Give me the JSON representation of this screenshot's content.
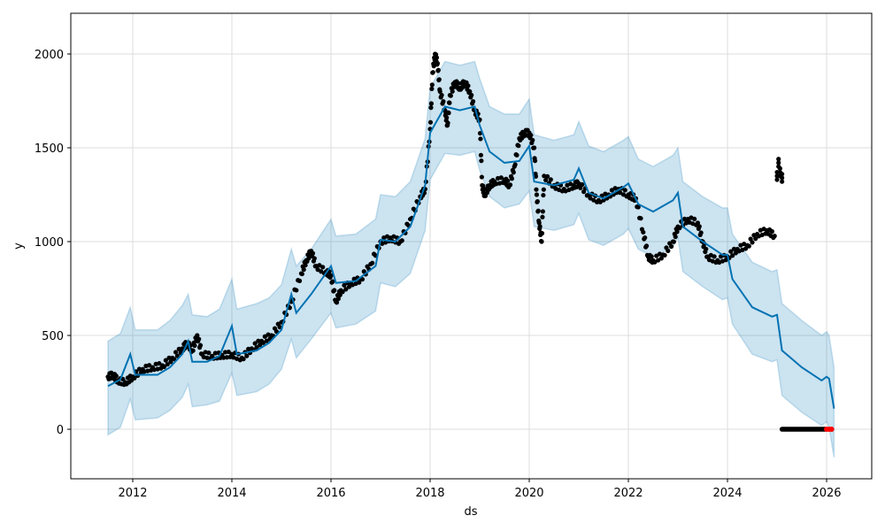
{
  "chart_data": {
    "type": "line",
    "title": "",
    "xlabel": "ds",
    "ylabel": "y",
    "xlim": [
      2010.75,
      2026.91
    ],
    "ylim": [
      -264,
      2217
    ],
    "grid": true,
    "xticks": [
      2012,
      2014,
      2016,
      2018,
      2020,
      2022,
      2024,
      2026
    ],
    "xtick_labels": [
      "2012",
      "2014",
      "2016",
      "2018",
      "2020",
      "2022",
      "2024",
      "2026"
    ],
    "yticks": [
      0,
      500,
      1000,
      1500,
      2000
    ],
    "ytick_labels": [
      "0",
      "500",
      "1000",
      "1500",
      "2000"
    ],
    "colors": {
      "forecast": "#0072B2",
      "band": "#0072B2",
      "observed": "#000000",
      "highlight": "#ff0000",
      "grid": "#dddddd"
    },
    "forecast": {
      "name": "yhat",
      "x": [
        2011.5,
        2011.75,
        2011.95,
        2012.05,
        2012.5,
        2012.75,
        2013.0,
        2013.12,
        2013.2,
        2013.5,
        2013.75,
        2014.0,
        2014.1,
        2014.5,
        2014.75,
        2015.0,
        2015.2,
        2015.3,
        2015.6,
        2016.0,
        2016.1,
        2016.5,
        2016.9,
        2017.0,
        2017.3,
        2017.6,
        2017.9,
        2018.0,
        2018.3,
        2018.6,
        2018.9,
        2019.0,
        2019.2,
        2019.5,
        2019.8,
        2020.0,
        2020.1,
        2020.5,
        2020.9,
        2021.0,
        2021.2,
        2021.5,
        2021.9,
        2022.0,
        2022.2,
        2022.5,
        2022.9,
        2023.0,
        2023.1,
        2023.5,
        2023.9,
        2024.0,
        2024.1,
        2024.5,
        2024.9,
        2025.0,
        2025.1,
        2025.5,
        2025.9,
        2026.0,
        2026.05,
        2026.15
      ],
      "yhat": [
        230,
        265,
        400,
        290,
        290,
        330,
        400,
        470,
        360,
        360,
        390,
        550,
        400,
        420,
        460,
        530,
        720,
        620,
        720,
        870,
        780,
        790,
        870,
        1010,
        1000,
        1080,
        1300,
        1580,
        1720,
        1700,
        1720,
        1620,
        1480,
        1420,
        1430,
        1510,
        1320,
        1300,
        1330,
        1390,
        1260,
        1230,
        1290,
        1310,
        1200,
        1160,
        1220,
        1260,
        1080,
        1000,
        930,
        930,
        800,
        650,
        600,
        610,
        420,
        330,
        260,
        280,
        270,
        110
      ],
      "lower": [
        -30,
        10,
        160,
        50,
        60,
        100,
        170,
        240,
        120,
        130,
        150,
        300,
        180,
        200,
        240,
        320,
        480,
        380,
        480,
        620,
        540,
        560,
        630,
        780,
        760,
        830,
        1060,
        1330,
        1470,
        1460,
        1480,
        1380,
        1240,
        1180,
        1200,
        1270,
        1080,
        1060,
        1090,
        1150,
        1010,
        980,
        1040,
        1070,
        960,
        920,
        970,
        1020,
        840,
        760,
        690,
        700,
        560,
        400,
        360,
        370,
        180,
        90,
        20,
        40,
        10,
        -150
      ],
      "upper": [
        470,
        510,
        650,
        530,
        530,
        580,
        660,
        720,
        610,
        600,
        640,
        800,
        640,
        670,
        700,
        770,
        960,
        870,
        960,
        1120,
        1030,
        1040,
        1120,
        1250,
        1240,
        1320,
        1550,
        1820,
        1960,
        1940,
        1960,
        1870,
        1720,
        1680,
        1680,
        1760,
        1570,
        1540,
        1570,
        1640,
        1510,
        1480,
        1540,
        1560,
        1440,
        1400,
        1460,
        1500,
        1320,
        1240,
        1180,
        1180,
        1040,
        890,
        840,
        850,
        670,
        580,
        500,
        520,
        500,
        330
      ]
    },
    "observed": {
      "name": "y",
      "points": [
        [
          2011.5,
          280
        ],
        [
          2011.6,
          290
        ],
        [
          2011.7,
          260
        ],
        [
          2011.85,
          250
        ],
        [
          2012.0,
          280
        ],
        [
          2012.2,
          320
        ],
        [
          2012.4,
          330
        ],
        [
          2012.6,
          340
        ],
        [
          2012.8,
          380
        ],
        [
          2013.0,
          430
        ],
        [
          2013.1,
          460
        ],
        [
          2013.2,
          420
        ],
        [
          2013.3,
          500
        ],
        [
          2013.4,
          400
        ],
        [
          2013.6,
          390
        ],
        [
          2013.8,
          395
        ],
        [
          2014.0,
          400
        ],
        [
          2014.2,
          380
        ],
        [
          2014.4,
          430
        ],
        [
          2014.6,
          470
        ],
        [
          2014.8,
          500
        ],
        [
          2015.0,
          570
        ],
        [
          2015.2,
          680
        ],
        [
          2015.4,
          830
        ],
        [
          2015.5,
          900
        ],
        [
          2015.6,
          950
        ],
        [
          2015.7,
          870
        ],
        [
          2015.9,
          840
        ],
        [
          2016.0,
          820
        ],
        [
          2016.1,
          680
        ],
        [
          2016.2,
          740
        ],
        [
          2016.4,
          780
        ],
        [
          2016.6,
          800
        ],
        [
          2016.8,
          880
        ],
        [
          2017.0,
          1000
        ],
        [
          2017.2,
          1020
        ],
        [
          2017.4,
          1000
        ],
        [
          2017.6,
          1120
        ],
        [
          2017.8,
          1240
        ],
        [
          2017.9,
          1280
        ],
        [
          2018.0,
          1600
        ],
        [
          2018.05,
          1900
        ],
        [
          2018.1,
          2000
        ],
        [
          2018.15,
          1950
        ],
        [
          2018.2,
          1800
        ],
        [
          2018.3,
          1700
        ],
        [
          2018.35,
          1620
        ],
        [
          2018.4,
          1780
        ],
        [
          2018.5,
          1850
        ],
        [
          2018.6,
          1820
        ],
        [
          2018.7,
          1850
        ],
        [
          2018.8,
          1800
        ],
        [
          2018.9,
          1700
        ],
        [
          2019.0,
          1650
        ],
        [
          2019.05,
          1300
        ],
        [
          2019.1,
          1250
        ],
        [
          2019.2,
          1300
        ],
        [
          2019.3,
          1320
        ],
        [
          2019.5,
          1330
        ],
        [
          2019.6,
          1300
        ],
        [
          2019.7,
          1400
        ],
        [
          2019.8,
          1550
        ],
        [
          2019.9,
          1580
        ],
        [
          2020.0,
          1580
        ],
        [
          2020.1,
          1500
        ],
        [
          2020.15,
          1250
        ],
        [
          2020.2,
          1100
        ],
        [
          2020.25,
          1000
        ],
        [
          2020.3,
          1350
        ],
        [
          2020.5,
          1300
        ],
        [
          2020.7,
          1280
        ],
        [
          2020.9,
          1300
        ],
        [
          2021.0,
          1310
        ],
        [
          2021.2,
          1250
        ],
        [
          2021.4,
          1220
        ],
        [
          2021.6,
          1250
        ],
        [
          2021.8,
          1280
        ],
        [
          2022.0,
          1250
        ],
        [
          2022.15,
          1230
        ],
        [
          2022.3,
          1050
        ],
        [
          2022.4,
          920
        ],
        [
          2022.5,
          900
        ],
        [
          2022.7,
          930
        ],
        [
          2022.9,
          1000
        ],
        [
          2023.0,
          1080
        ],
        [
          2023.2,
          1120
        ],
        [
          2023.4,
          1100
        ],
        [
          2023.5,
          1000
        ],
        [
          2023.6,
          920
        ],
        [
          2023.8,
          900
        ],
        [
          2024.0,
          920
        ],
        [
          2024.2,
          960
        ],
        [
          2024.4,
          980
        ],
        [
          2024.6,
          1040
        ],
        [
          2024.8,
          1060
        ],
        [
          2024.95,
          1030
        ]
      ],
      "late_cluster": [
        [
          2025.0,
          1350
        ],
        [
          2025.03,
          1420
        ],
        [
          2025.06,
          1370
        ],
        [
          2025.1,
          1340
        ]
      ],
      "zero_run": {
        "from": 2025.1,
        "to": 2025.98,
        "value": 0
      }
    },
    "highlighted": {
      "name": "recent",
      "points": [
        [
          2026.0,
          0
        ],
        [
          2026.05,
          0
        ],
        [
          2026.1,
          0
        ]
      ]
    }
  }
}
